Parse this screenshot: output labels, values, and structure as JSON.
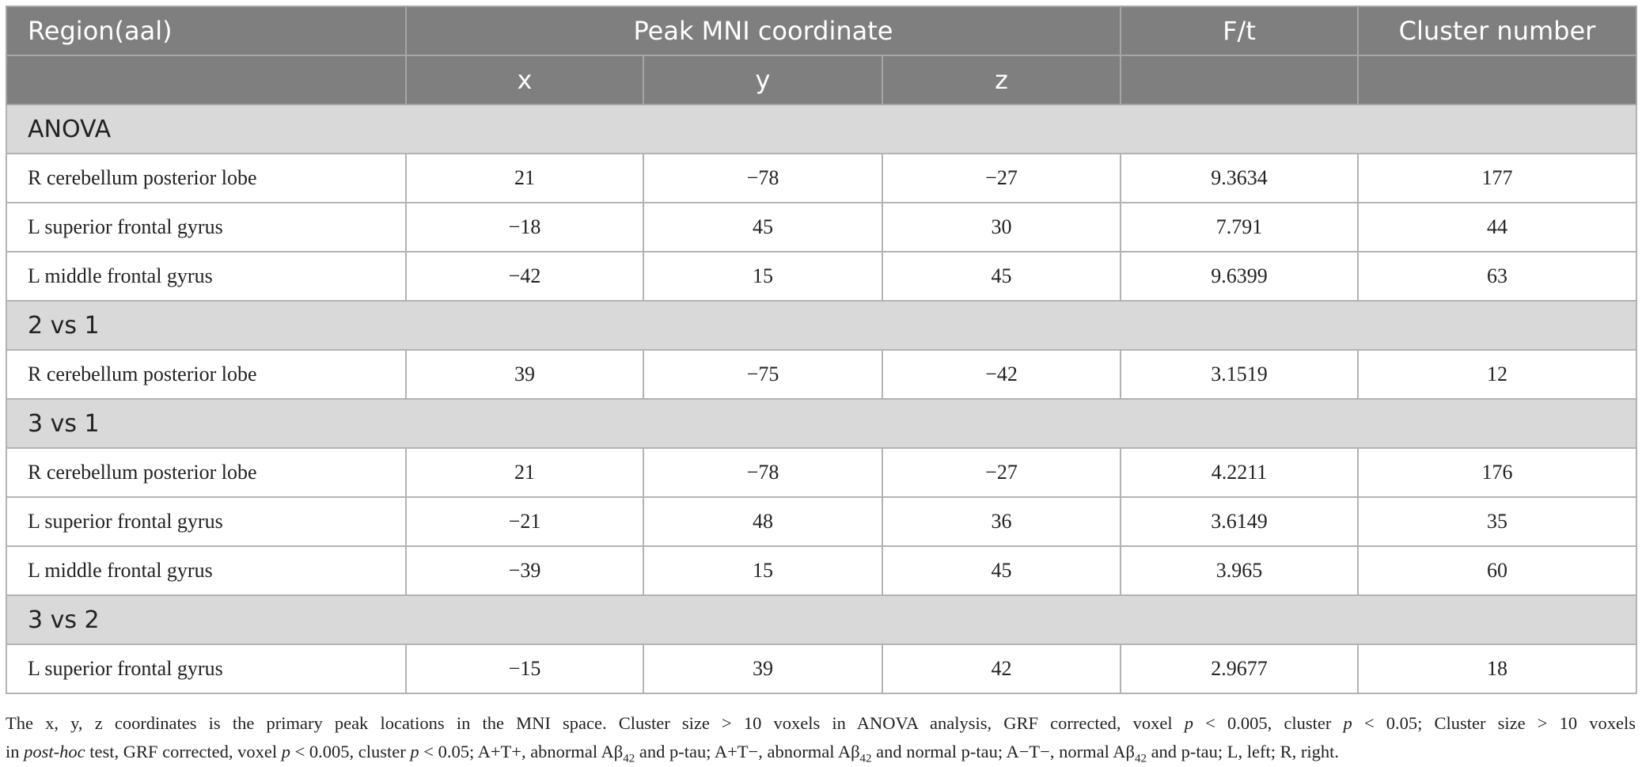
{
  "header": {
    "region": "Region(aal)",
    "coordinate": "Peak MNI coordinate",
    "ft": "F/t",
    "cluster": "Cluster number",
    "axes": [
      "x",
      "y",
      "z"
    ]
  },
  "sections": [
    {
      "label": "ANOVA",
      "rows": [
        [
          "R cerebellum posterior lobe",
          "21",
          "−78",
          "−27",
          "9.3634",
          "177"
        ],
        [
          "L superior frontal gyrus",
          "−18",
          "45",
          "30",
          "7.791",
          "44"
        ],
        [
          "L middle frontal gyrus",
          "−42",
          "15",
          "45",
          "9.6399",
          "63"
        ]
      ]
    },
    {
      "label": "2 vs 1",
      "rows": [
        [
          "R cerebellum posterior lobe",
          "39",
          "−75",
          "−42",
          "3.1519",
          "12"
        ]
      ]
    },
    {
      "label": "3 vs 1",
      "rows": [
        [
          "R cerebellum posterior lobe",
          "21",
          "−78",
          "−27",
          "4.2211",
          "176"
        ],
        [
          "L superior frontal gyrus",
          "−21",
          "48",
          "36",
          "3.6149",
          "35"
        ],
        [
          "L middle frontal gyrus",
          "−39",
          "15",
          "45",
          "3.965",
          "60"
        ]
      ]
    },
    {
      "label": "3 vs 2",
      "rows": [
        [
          "L superior frontal gyrus",
          "−15",
          "39",
          "42",
          "2.9677",
          "18"
        ]
      ]
    }
  ],
  "footnote": {
    "lines": [
      [
        {
          "text": "The x, y, z coordinates is the primary peak locations in the MNI space. Cluster size > 10 voxels in ANOVA analysis, GRF corrected, voxel "
        },
        {
          "text": "p",
          "style": "italic"
        },
        {
          "text": " < 0.005, cluster "
        },
        {
          "text": "p",
          "style": "italic"
        },
        {
          "text": " < 0.05; Cluster size > 10 voxels"
        }
      ],
      [
        {
          "text": "in "
        },
        {
          "text": "post-hoc",
          "style": "italic"
        },
        {
          "text": " test, GRF corrected, voxel "
        },
        {
          "text": "p",
          "style": "italic"
        },
        {
          "text": " < 0.005, cluster "
        },
        {
          "text": "p",
          "style": "italic"
        },
        {
          "text": " < 0.05; A+T+, abnormal Aβ"
        },
        {
          "text": "42",
          "style": "sub"
        },
        {
          "text": " and p-tau; A+T−, abnormal Aβ"
        },
        {
          "text": "42",
          "style": "sub"
        },
        {
          "text": " and normal p-tau; A−T−, normal Aβ"
        },
        {
          "text": "42",
          "style": "sub"
        },
        {
          "text": " and p-tau; L, left; R, right."
        }
      ]
    ]
  }
}
